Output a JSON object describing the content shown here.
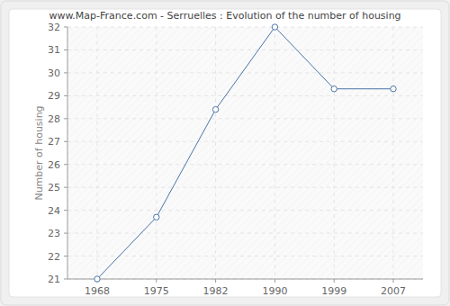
{
  "chart_data": {
    "type": "line",
    "title": "www.Map-France.com - Serruelles : Evolution of the number of housing",
    "y_label": "Number of housing",
    "categories": [
      "1968",
      "1975",
      "1982",
      "1990",
      "1999",
      "2007"
    ],
    "values": [
      21,
      23.7,
      28.4,
      32,
      29.3,
      29.3
    ],
    "color": "#4a74a8",
    "marker": "circle",
    "ylim": [
      21,
      32
    ],
    "yticks": [
      21,
      22,
      23,
      24,
      25,
      26,
      27,
      28,
      29,
      30,
      31,
      32
    ],
    "grid": true
  }
}
